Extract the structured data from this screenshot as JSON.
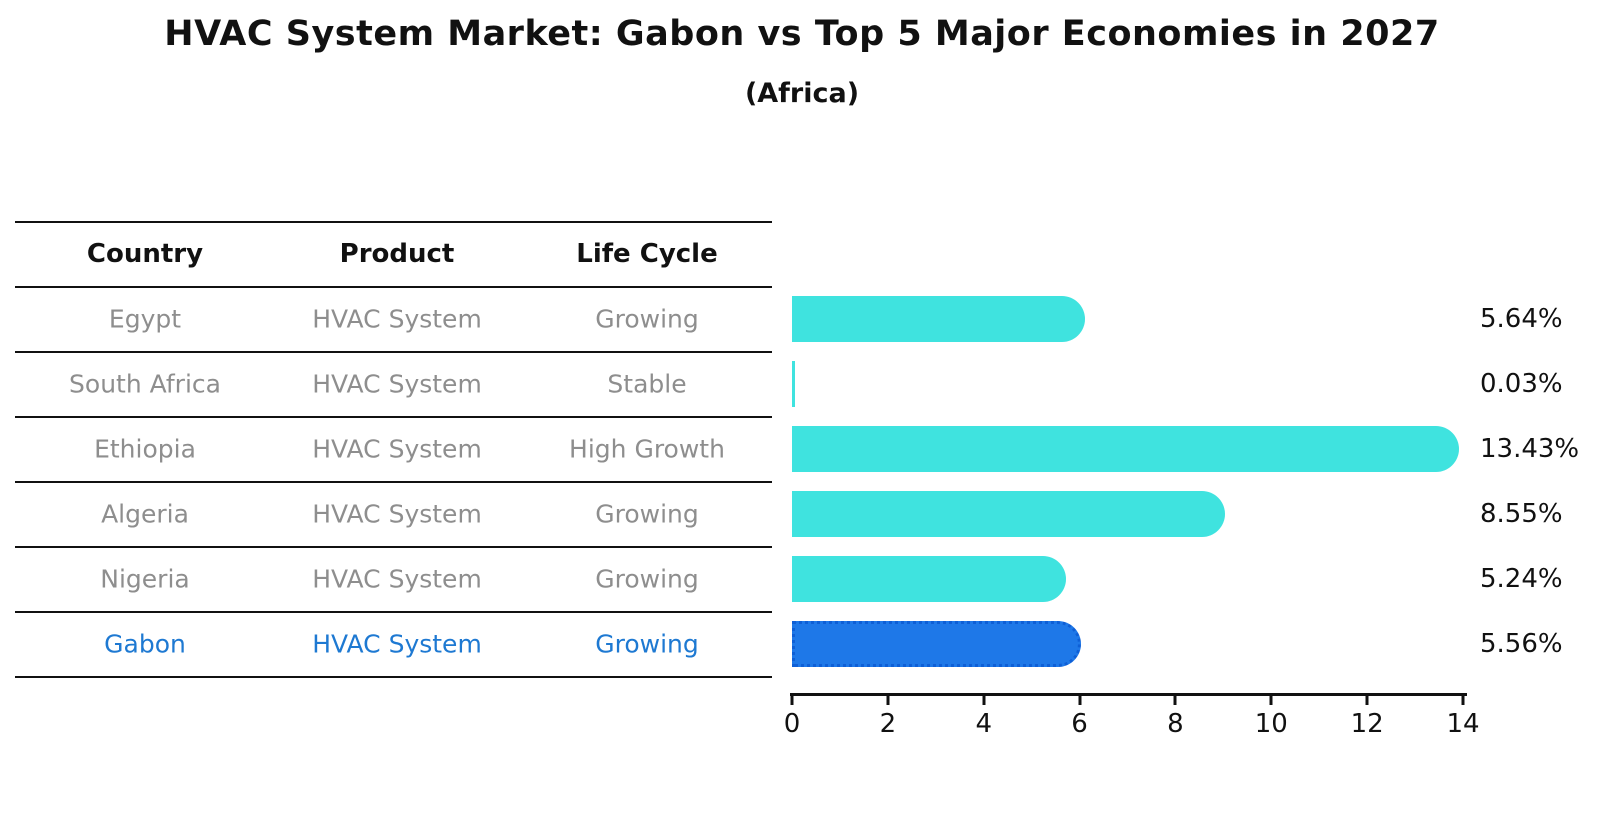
{
  "chart_data": {
    "type": "bar",
    "orientation": "horizontal",
    "title": "HVAC System Market: Gabon vs Top 5 Major Economies in 2027",
    "subtitle": "(Africa)",
    "categories": [
      "Egypt",
      "South Africa",
      "Ethiopia",
      "Algeria",
      "Nigeria",
      "Gabon"
    ],
    "values": [
      5.64,
      0.03,
      13.43,
      8.55,
      5.24,
      5.56
    ],
    "value_labels": [
      "5.64%",
      "0.03%",
      "13.43%",
      "8.55%",
      "5.24%",
      "5.56%"
    ],
    "xlim": [
      0,
      14
    ],
    "x_ticks": [
      "0",
      "2",
      "4",
      "6",
      "8",
      "10",
      "12",
      "14"
    ],
    "grid": false,
    "legend": "none",
    "bar_color": "#3fe3df",
    "highlight_color": "#1e78e8",
    "highlight_border_color": "#0e5fd6",
    "highlight_index": 5
  },
  "table": {
    "columns": [
      "Country",
      "Product",
      "Life Cycle"
    ],
    "rows": [
      {
        "country": "Egypt",
        "product": "HVAC System",
        "life_cycle": "Growing",
        "highlight": false
      },
      {
        "country": "South Africa",
        "product": "HVAC System",
        "life_cycle": "Stable",
        "highlight": false
      },
      {
        "country": "Ethiopia",
        "product": "HVAC System",
        "life_cycle": "High Growth",
        "highlight": false
      },
      {
        "country": "Algeria",
        "product": "HVAC System",
        "life_cycle": "Growing",
        "highlight": false
      },
      {
        "country": "Nigeria",
        "product": "HVAC System",
        "life_cycle": "Growing",
        "highlight": true
      }
    ],
    "highlight_row": {
      "country": "Gabon",
      "product": "HVAC System",
      "life_cycle": "Growing"
    }
  },
  "colors": {
    "text_black": "#111111",
    "text_gray": "#8e8e8e",
    "text_highlight": "#1e79d2"
  }
}
